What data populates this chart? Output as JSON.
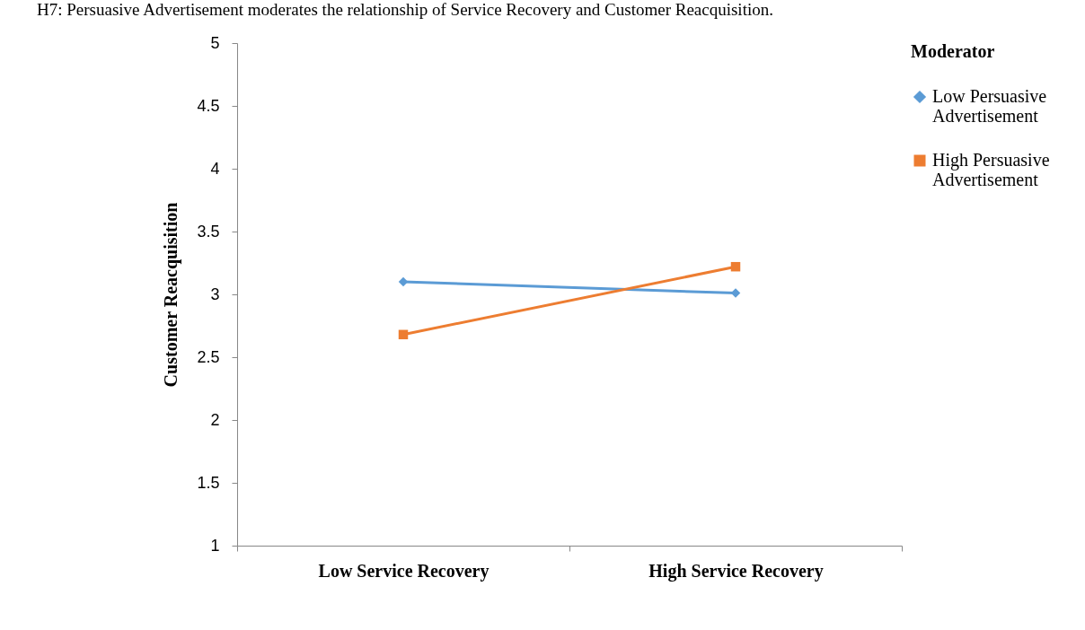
{
  "chart_data": {
    "type": "line",
    "title": "H7: Persuasive Advertisement moderates the relationship of Service Recovery and Customer Reacquisition.",
    "ylabel": "Customer Reacquisition",
    "legend_title": "Moderator",
    "categories": [
      "Low Service Recovery",
      "High Service Recovery"
    ],
    "series": [
      {
        "name": "Low Persuasive Advertisement",
        "color": "#5b9bd5",
        "marker": "diamond",
        "values": [
          3.1,
          3.01
        ]
      },
      {
        "name": "High Persuasive Advertisement",
        "color": "#ed7d31",
        "marker": "square",
        "values": [
          2.68,
          3.22
        ]
      }
    ],
    "ylim": [
      1,
      5
    ],
    "yticks": [
      1,
      1.5,
      2,
      2.5,
      3,
      3.5,
      4,
      4.5,
      5
    ],
    "grid": false,
    "legend": "right"
  }
}
